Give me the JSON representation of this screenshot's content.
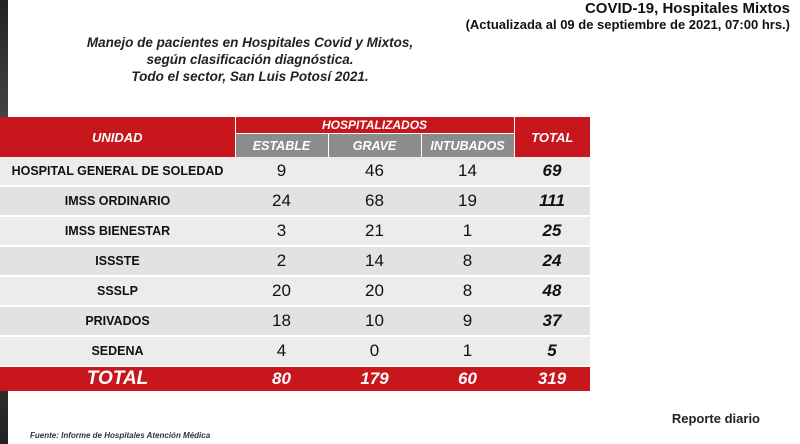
{
  "header": {
    "title": "COVID-19, Hospitales Mixtos",
    "subtitle": "(Actualizada al 09 de septiembre de 2021, 07:00 hrs.)"
  },
  "description": {
    "line1": "Manejo de pacientes en Hospitales Covid y Mixtos,",
    "line2": "según clasificación diagnóstica.",
    "line3": "Todo el sector, San Luis Potosí 2021."
  },
  "table": {
    "headers": {
      "unidad": "UNIDAD",
      "hospitalizados": "HOSPITALIZADOS",
      "estable": "ESTABLE",
      "grave": "GRAVE",
      "intubados": "INTUBADOS",
      "total": "TOTAL"
    },
    "rows": [
      {
        "unidad": "HOSPITAL GENERAL DE SOLEDAD",
        "estable": "9",
        "grave": "46",
        "intubados": "14",
        "total": "69"
      },
      {
        "unidad": "IMSS ORDINARIO",
        "estable": "24",
        "grave": "68",
        "intubados": "19",
        "total": "111"
      },
      {
        "unidad": "IMSS BIENESTAR",
        "estable": "3",
        "grave": "21",
        "intubados": "1",
        "total": "25"
      },
      {
        "unidad": "ISSSTE",
        "estable": "2",
        "grave": "14",
        "intubados": "8",
        "total": "24"
      },
      {
        "unidad": "SSSLP",
        "estable": "20",
        "grave": "20",
        "intubados": "8",
        "total": "48"
      },
      {
        "unidad": "PRIVADOS",
        "estable": "18",
        "grave": "10",
        "intubados": "9",
        "total": "37"
      },
      {
        "unidad": "SEDENA",
        "estable": "4",
        "grave": "0",
        "intubados": "1",
        "total": "5"
      }
    ],
    "totals": {
      "label": "TOTAL",
      "estable": "80",
      "grave": "179",
      "intubados": "60",
      "total": "319"
    }
  },
  "footer": {
    "report": "Reporte diario",
    "source": "Fuente: Informe de Hospitales Atención Médica"
  },
  "colors": {
    "accent_red": "#c8161d",
    "subheader_gray": "#8c8c8c"
  }
}
